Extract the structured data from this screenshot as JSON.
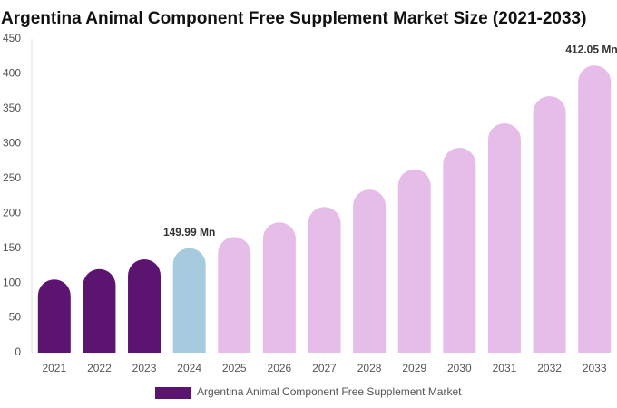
{
  "chart_data": {
    "type": "bar",
    "title": "Argentina Animal Component Free Supplement Market Size (2021-2033)",
    "categories": [
      "2021",
      "2022",
      "2023",
      "2024",
      "2025",
      "2026",
      "2027",
      "2028",
      "2029",
      "2030",
      "2031",
      "2032",
      "2033"
    ],
    "series": [
      {
        "name": "Argentina Animal Component Free Supplement Market",
        "color": "#5b1470",
        "values": [
          105,
          120,
          134,
          149.99,
          166,
          187,
          209,
          234,
          263,
          294,
          329,
          368,
          412.05
        ],
        "colors": [
          "#5b1470",
          "#5b1470",
          "#5b1470",
          "#a6cbdf",
          "#e6bde8",
          "#e6bde8",
          "#e6bde8",
          "#e6bde8",
          "#e6bde8",
          "#e6bde8",
          "#e6bde8",
          "#e6bde8",
          "#e6bde8"
        ],
        "value_labels": [
          null,
          null,
          null,
          "149.99 Mn",
          null,
          null,
          null,
          null,
          null,
          null,
          null,
          null,
          "412.05 Mn"
        ]
      }
    ],
    "ylim": [
      0,
      450
    ],
    "yticks": [
      0,
      50,
      100,
      150,
      200,
      250,
      300,
      350,
      400,
      450
    ],
    "grid": false
  }
}
